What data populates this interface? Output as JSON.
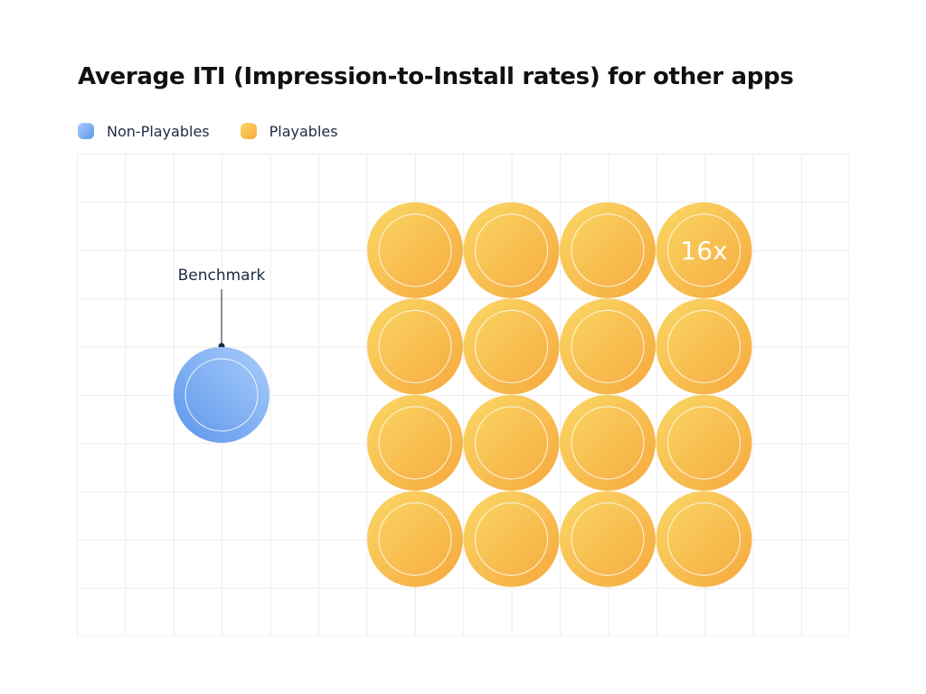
{
  "title": "Average ITI (Impression-to-Install rates) for other apps",
  "legend": [
    {
      "label": "Non-Playables",
      "color_start": "#a9cdfb",
      "color_end": "#5b95ea"
    },
    {
      "label": "Playables",
      "color_start": "#fad866",
      "color_end": "#f6a83e"
    }
  ],
  "chart_data": {
    "type": "pictograph",
    "title": "Average ITI (Impression-to-Install rates) for other apps",
    "grid": true,
    "series": [
      {
        "name": "Non-Playables",
        "count": 1,
        "annotation": "Benchmark"
      },
      {
        "name": "Playables",
        "count": 16,
        "annotation": "16x"
      }
    ],
    "playables_layout": {
      "rows": 4,
      "cols": 4
    }
  },
  "colors": {
    "grid": "#ececec",
    "annotation_text": "#1d2b45",
    "leader_line": "#1d2b45"
  }
}
